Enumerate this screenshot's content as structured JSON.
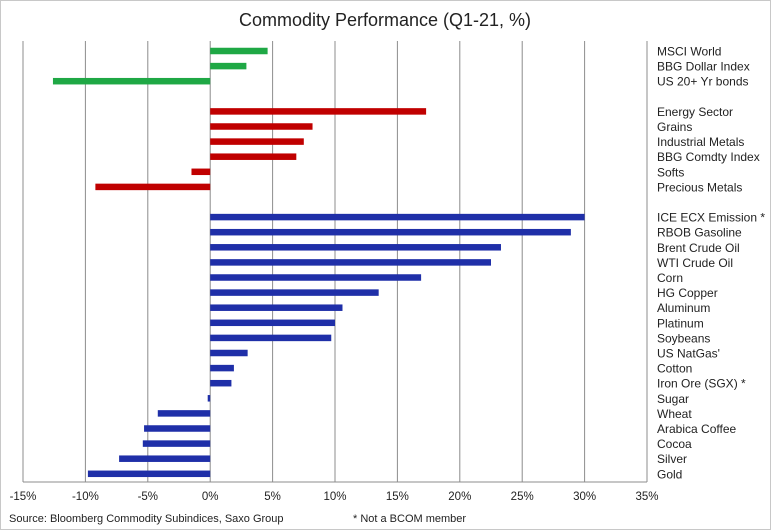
{
  "chart_data": {
    "type": "bar",
    "orientation": "horizontal",
    "title": "Commodity Performance (Q1-21, %)",
    "xlabel": "",
    "ylabel": "",
    "xlim": [
      -15,
      35
    ],
    "xticks": [
      -15,
      -10,
      -5,
      0,
      5,
      10,
      15,
      20,
      25,
      30,
      35
    ],
    "xtick_labels": [
      "-15%",
      "-10%",
      "-5%",
      "0%",
      "5%",
      "10%",
      "15%",
      "20%",
      "25%",
      "30%",
      "35%"
    ],
    "grid": "vertical",
    "category_label_position": "right",
    "groups": [
      {
        "color": "#1fa845",
        "categories": [
          "MSCI World",
          "BBG Dollar Index",
          "US 20+ Yr bonds"
        ],
        "values": [
          4.6,
          2.9,
          -12.6
        ]
      },
      {
        "color": "#c00000",
        "categories": [
          "Energy Sector",
          "Grains",
          "Industrial Metals",
          "BBG Comdty Index",
          "Softs",
          "Precious Metals"
        ],
        "values": [
          17.3,
          8.2,
          7.5,
          6.9,
          -1.5,
          -9.2
        ]
      },
      {
        "color": "#1f2fa8",
        "categories": [
          "ICE ECX Emission *",
          "RBOB Gasoline",
          "Brent Crude Oil",
          "WTI Crude Oil",
          "Corn",
          "HG Copper",
          "Aluminum",
          "Platinum",
          "Soybeans",
          "US NatGas'",
          "Cotton",
          "Iron Ore (SGX) *",
          "Sugar",
          "Wheat",
          "Arabica Coffee",
          "Cocoa",
          "Silver",
          "Gold"
        ],
        "values": [
          30.0,
          28.9,
          23.3,
          22.5,
          16.9,
          13.5,
          10.6,
          10.0,
          9.7,
          3.0,
          1.9,
          1.7,
          -0.2,
          -4.2,
          -5.3,
          -5.4,
          -7.3,
          -9.8
        ]
      }
    ]
  },
  "footer": {
    "source": "Source: Bloomberg Commodity Subindices, Saxo Group",
    "note": "* Not a BCOM member"
  }
}
